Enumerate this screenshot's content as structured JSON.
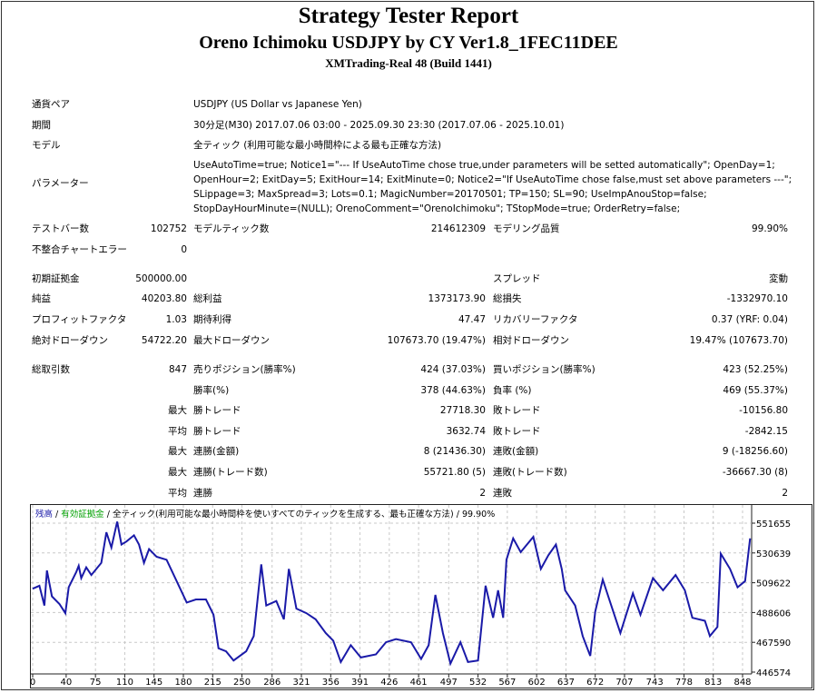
{
  "header": {
    "title": "Strategy Tester Report",
    "subtitle": "Oreno Ichimoku USDJPY by CY Ver1.8_1FEC11DEE",
    "server": "XMTrading-Real 48 (Build 1441)"
  },
  "info": [
    {
      "label": "通貨ペア",
      "value": "USDJPY (US Dollar vs Japanese Yen)"
    },
    {
      "label": "期間",
      "value": "30分足(M30) 2017.07.06 03:00 - 2025.09.30 23:30 (2017.07.06 - 2025.10.01)"
    },
    {
      "label": "モデル",
      "value": "全ティック (利用可能な最小時間枠による最も正確な方法)"
    }
  ],
  "parameters": {
    "label": "パラメーター",
    "value": "UseAutoTime=true; Notice1=\"--- If UseAutoTime chose true,under parameters will be setted automatically\"; OpenDay=1; OpenHour=2; ExitDay=5; ExitHour=14; ExitMinute=0; Notice2=\"If UseAutoTime chose false,must set above parameters ---\"; SLippage=3; MaxSpread=3; Lots=0.1; MagicNumber=20170501; TP=150; SL=90; UseImpAnouStop=false; StopDayHourMinute=(NULL); OrenoComment=\"OrenoIchimoku\"; TStopMode=true; OrderRetry=false;"
  },
  "stats": [
    [
      "テストバー数",
      "102752",
      "モデルティック数",
      "214612309",
      "モデリング品質",
      "99.90%"
    ],
    [
      "不整合チャートエラー",
      "0",
      "",
      "",
      "",
      ""
    ],
    [
      "初期証拠金",
      "500000.00",
      "",
      "",
      "スプレッド",
      "変動"
    ],
    [
      "純益",
      "40203.80",
      "総利益",
      "1373173.90",
      "総損失",
      "-1332970.10"
    ],
    [
      "プロフィットファクタ",
      "1.03",
      "期待利得",
      "47.47",
      "リカバリーファクタ",
      "0.37 (YRF: 0.04)"
    ],
    [
      "絶対ドローダウン",
      "54722.20",
      "最大ドローダウン",
      "107673.70 (19.47%)",
      "相対ドローダウン",
      "19.47% (107673.70)"
    ],
    [
      "総取引数",
      "847",
      "売りポジション(勝率%)",
      "424 (37.03%)",
      "買いポジション(勝率%)",
      "423 (52.25%)"
    ],
    [
      "",
      "",
      "勝率(%)",
      "378 (44.63%)",
      "負率 (%)",
      "469 (55.37%)"
    ],
    [
      "",
      "最大",
      "勝トレード",
      "27718.30",
      "敗トレード",
      "-10156.80"
    ],
    [
      "",
      "平均",
      "勝トレード",
      "3632.74",
      "敗トレード",
      "-2842.15"
    ],
    [
      "",
      "最大",
      "連勝(金額)",
      "8 (21436.30)",
      "連敗(金額)",
      "9 (-18256.60)"
    ],
    [
      "",
      "最大",
      "連勝(トレード数)",
      "55721.80 (5)",
      "連敗(トレード数)",
      "-36667.30 (8)"
    ],
    [
      "",
      "平均",
      "連勝",
      "2",
      "連敗",
      "2"
    ]
  ],
  "chart_legend": {
    "balance": "残高",
    "equity": "有効証拠金",
    "model": "全ティック(利用可能な最小時間枠を使いすべてのティックを生成する、最も正確な方法)",
    "quality": "99.90%",
    "sep": " / "
  },
  "colors": {
    "balance": "#1a1aa8",
    "equity": "#00a000",
    "grid": "#c8c8c8"
  },
  "chart_data": {
    "type": "line",
    "title": "",
    "xlabel": "",
    "ylabel": "",
    "xlim": [
      0,
      862
    ],
    "ylim": [
      446574,
      562163
    ],
    "x_ticks": [
      0,
      40,
      75,
      110,
      145,
      180,
      215,
      250,
      286,
      321,
      356,
      391,
      426,
      461,
      497,
      532,
      567,
      602,
      637,
      672,
      707,
      743,
      778,
      813,
      848
    ],
    "y_ticks": [
      551655,
      530639,
      509622,
      488606,
      467590,
      446574
    ],
    "grid": true,
    "series": [
      {
        "name": "残高",
        "points": [
          [
            0,
            505365
          ],
          [
            8,
            507520
          ],
          [
            14,
            493530
          ],
          [
            17,
            518280
          ],
          [
            23,
            499980
          ],
          [
            32,
            494600
          ],
          [
            39,
            488140
          ],
          [
            43,
            506440
          ],
          [
            52,
            517210
          ],
          [
            55,
            521510
          ],
          [
            58,
            512900
          ],
          [
            64,
            520440
          ],
          [
            70,
            515050
          ],
          [
            82,
            523670
          ],
          [
            88,
            545200
          ],
          [
            94,
            534430
          ],
          [
            101,
            552730
          ],
          [
            106,
            536580
          ],
          [
            112,
            538740
          ],
          [
            121,
            543040
          ],
          [
            127,
            536580
          ],
          [
            133,
            523670
          ],
          [
            139,
            533350
          ],
          [
            148,
            527970
          ],
          [
            160,
            525820
          ],
          [
            172,
            510750
          ],
          [
            184,
            495680
          ],
          [
            195,
            497830
          ],
          [
            207,
            497830
          ],
          [
            216,
            487070
          ],
          [
            222,
            463380
          ],
          [
            231,
            461230
          ],
          [
            240,
            454770
          ],
          [
            255,
            461230
          ],
          [
            264,
            471990
          ],
          [
            273,
            522590
          ],
          [
            279,
            493520
          ],
          [
            291,
            496750
          ],
          [
            300,
            483830
          ],
          [
            306,
            519360
          ],
          [
            315,
            491370
          ],
          [
            327,
            488140
          ],
          [
            338,
            483830
          ],
          [
            350,
            474140
          ],
          [
            359,
            468760
          ],
          [
            368,
            453690
          ],
          [
            380,
            465530
          ],
          [
            392,
            456920
          ],
          [
            410,
            459070
          ],
          [
            422,
            467680
          ],
          [
            434,
            469840
          ],
          [
            452,
            467680
          ],
          [
            464,
            455840
          ],
          [
            473,
            465530
          ],
          [
            481,
            501060
          ],
          [
            490,
            474140
          ],
          [
            499,
            452610
          ],
          [
            511,
            467680
          ],
          [
            520,
            453690
          ],
          [
            532,
            454770
          ],
          [
            541,
            507520
          ],
          [
            550,
            484910
          ],
          [
            556,
            504280
          ],
          [
            562,
            484910
          ],
          [
            566,
            525820
          ],
          [
            574,
            540890
          ],
          [
            583,
            531200
          ],
          [
            598,
            541970
          ],
          [
            607,
            519360
          ],
          [
            616,
            529050
          ],
          [
            625,
            536580
          ],
          [
            632,
            519360
          ],
          [
            636,
            504280
          ],
          [
            648,
            493520
          ],
          [
            657,
            471990
          ],
          [
            666,
            457990
          ],
          [
            672,
            489220
          ],
          [
            681,
            511820
          ],
          [
            690,
            495680
          ],
          [
            702,
            474140
          ],
          [
            717,
            502130
          ],
          [
            726,
            487070
          ],
          [
            741,
            512900
          ],
          [
            753,
            504280
          ],
          [
            768,
            515050
          ],
          [
            779,
            504280
          ],
          [
            788,
            484910
          ],
          [
            803,
            482760
          ],
          [
            809,
            471990
          ],
          [
            818,
            478450
          ],
          [
            822,
            530120
          ],
          [
            833,
            519360
          ],
          [
            842,
            506440
          ],
          [
            851,
            510750
          ],
          [
            857,
            540890
          ]
        ]
      }
    ]
  }
}
